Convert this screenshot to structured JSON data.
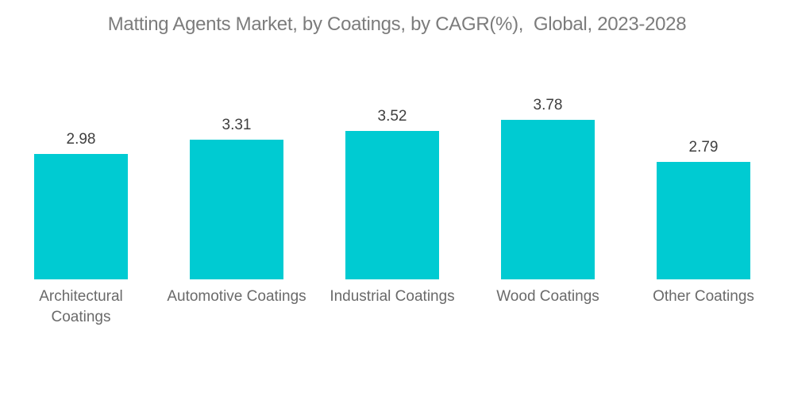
{
  "chart_data": {
    "type": "bar",
    "title": "Matting Agents Market, by Coatings, by CAGR(%),  Global, 2023-2028",
    "categories": [
      "Architectural Coatings",
      "Automotive Coatings",
      "Industrial Coatings",
      "Wood Coatings",
      "Other Coatings"
    ],
    "values": [
      2.98,
      3.31,
      3.52,
      3.78,
      2.79
    ],
    "xlabel": "",
    "ylabel": "",
    "ylim": [
      0,
      4.2
    ],
    "grid": false,
    "axes_visible": false,
    "legend": "none",
    "value_labels_position": "above-bar",
    "colors": {
      "bar": "#00cbd2",
      "title": "#7c7c7c",
      "value_label": "#3f3f3f",
      "category_label": "#6a6a6a",
      "background": "#ffffff"
    }
  }
}
